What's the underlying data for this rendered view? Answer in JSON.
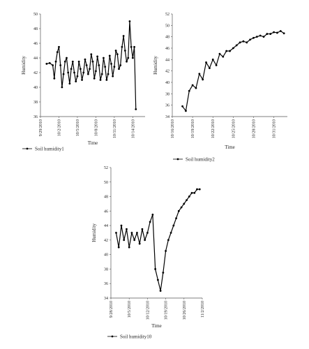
{
  "chart_data": [
    {
      "type": "line",
      "xlabel": "Time",
      "ylabel": "Humidity",
      "ylim": [
        36,
        50
      ],
      "yticks": [
        36,
        38,
        40,
        42,
        44,
        46,
        48,
        50
      ],
      "xlim": [
        "9/29/2010",
        "10/16/2010"
      ],
      "xticks": [
        "9/29/2010",
        "10/2/2010",
        "10/5/2010",
        "10/8/2010",
        "10/11/2010",
        "10/14/2010"
      ],
      "legend_position": "bottom-left",
      "series": [
        {
          "name": "Soil humidity1",
          "color": "#000000",
          "marker": "dot",
          "x": [
            "9/30/2010 00:00",
            "9/30/2010 12:00",
            "10/1/2010 00:00",
            "10/1/2010 06:00",
            "10/1/2010 12:00",
            "10/1/2010 18:00",
            "10/2/2010 00:00",
            "10/2/2010 06:00",
            "10/2/2010 12:00",
            "10/2/2010 18:00",
            "10/3/2010 00:00",
            "10/3/2010 06:00",
            "10/3/2010 12:00",
            "10/3/2010 18:00",
            "10/4/2010 00:00",
            "10/4/2010 06:00",
            "10/4/2010 12:00",
            "10/4/2010 18:00",
            "10/5/2010 00:00",
            "10/5/2010 06:00",
            "10/5/2010 12:00",
            "10/5/2010 18:00",
            "10/6/2010 00:00",
            "10/6/2010 06:00",
            "10/6/2010 12:00",
            "10/6/2010 18:00",
            "10/7/2010 00:00",
            "10/7/2010 06:00",
            "10/7/2010 12:00",
            "10/7/2010 18:00",
            "10/8/2010 00:00",
            "10/8/2010 06:00",
            "10/8/2010 12:00",
            "10/8/2010 18:00",
            "10/9/2010 00:00",
            "10/9/2010 06:00",
            "10/9/2010 12:00",
            "10/9/2010 18:00",
            "10/10/2010 00:00",
            "10/10/2010 06:00",
            "10/10/2010 12:00",
            "10/10/2010 18:00",
            "10/11/2010 00:00",
            "10/11/2010 06:00",
            "10/11/2010 12:00",
            "10/11/2010 18:00",
            "10/12/2010 00:00",
            "10/12/2010 06:00",
            "10/12/2010 12:00",
            "10/12/2010 18:00",
            "10/13/2010 00:00",
            "10/13/2010 06:00",
            "10/13/2010 12:00",
            "10/13/2010 18:00",
            "10/14/2010 00:00",
            "10/14/2010 06:00",
            "10/14/2010 12:00"
          ],
          "y": [
            43.2,
            43.3,
            43.0,
            41.2,
            43.5,
            44.8,
            45.5,
            43.0,
            40.0,
            41.8,
            43.5,
            44.0,
            42.0,
            40.5,
            42.5,
            43.5,
            42.0,
            40.8,
            41.5,
            43.5,
            42.5,
            41.0,
            42.0,
            43.8,
            43.0,
            41.8,
            42.5,
            44.5,
            43.5,
            41.2,
            42.2,
            44.2,
            43.0,
            41.0,
            41.8,
            44.0,
            42.8,
            41.0,
            41.8,
            44.3,
            43.2,
            41.5,
            42.8,
            45.0,
            44.5,
            42.5,
            43.0,
            45.5,
            47.0,
            45.0,
            43.5,
            44.0,
            49.0,
            45.5,
            44.0,
            45.5,
            37.0
          ]
        }
      ]
    },
    {
      "type": "line",
      "xlabel": "Time",
      "ylabel": "Humidity",
      "ylim": [
        34,
        52
      ],
      "yticks": [
        34,
        36,
        38,
        40,
        42,
        44,
        46,
        48,
        50,
        52
      ],
      "xlim": [
        "10/16/2010",
        "11/2/2010"
      ],
      "xticks": [
        "10/16/2010",
        "10/19/2010",
        "10/22/2010",
        "10/25/2010",
        "10/28/2010",
        "10/31/2010"
      ],
      "legend_position": "bottom-right",
      "series": [
        {
          "name": "Soil humidity2",
          "color": "#000000",
          "marker": "dot",
          "x": [
            "10/17/2010 12:00",
            "10/18/2010 00:00",
            "10/18/2010 12:00",
            "10/19/2010 00:00",
            "10/19/2010 12:00",
            "10/20/2010 00:00",
            "10/20/2010 12:00",
            "10/21/2010 00:00",
            "10/21/2010 12:00",
            "10/22/2010 00:00",
            "10/22/2010 12:00",
            "10/23/2010 00:00",
            "10/23/2010 12:00",
            "10/24/2010 00:00",
            "10/24/2010 12:00",
            "10/25/2010 00:00",
            "10/25/2010 12:00",
            "10/26/2010 00:00",
            "10/26/2010 12:00",
            "10/27/2010 00:00",
            "10/27/2010 12:00",
            "10/28/2010 00:00",
            "10/28/2010 12:00",
            "10/29/2010 00:00",
            "10/29/2010 12:00",
            "10/30/2010 00:00",
            "10/30/2010 12:00",
            "10/31/2010 00:00",
            "10/31/2010 12:00",
            "11/1/2010 00:00",
            "11/1/2010 12:00"
          ],
          "y": [
            35.8,
            35.0,
            38.5,
            39.5,
            39.0,
            41.5,
            40.5,
            43.5,
            42.5,
            44.0,
            43.0,
            45.0,
            44.5,
            45.5,
            45.5,
            46.0,
            46.5,
            47.0,
            47.2,
            47.0,
            47.5,
            47.8,
            48.0,
            48.2,
            48.0,
            48.5,
            48.5,
            48.8,
            48.7,
            49.0,
            48.6
          ]
        }
      ]
    },
    {
      "type": "line",
      "xlabel": "Time",
      "ylabel": "Humidity",
      "ylim": [
        34,
        52
      ],
      "yticks": [
        34,
        36,
        38,
        40,
        42,
        44,
        46,
        48,
        50,
        52
      ],
      "xlim": [
        "9/28/2010",
        "11/2/2010"
      ],
      "xticks": [
        "9/28/2010",
        "10/5/2010",
        "10/12/2010",
        "10/19/2010",
        "10/26/2010",
        "11/2/2010"
      ],
      "legend_position": "bottom-left",
      "series": [
        {
          "name": "Soil humidity10",
          "color": "#000000",
          "marker": "dot",
          "x": [
            "9/30/2010",
            "10/1/2010",
            "10/2/2010",
            "10/3/2010",
            "10/4/2010",
            "10/5/2010",
            "10/6/2010",
            "10/7/2010",
            "10/8/2010",
            "10/9/2010",
            "10/10/2010",
            "10/11/2010",
            "10/12/2010",
            "10/13/2010",
            "10/14/2010",
            "10/15/2010",
            "10/16/2010",
            "10/17/2010",
            "10/18/2010",
            "10/19/2010",
            "10/20/2010",
            "10/21/2010",
            "10/22/2010",
            "10/23/2010",
            "10/24/2010",
            "10/25/2010",
            "10/26/2010",
            "10/27/2010",
            "10/28/2010",
            "10/29/2010",
            "10/30/2010",
            "10/31/2010",
            "11/1/2010"
          ],
          "y": [
            43.0,
            41.0,
            44.0,
            42.0,
            43.5,
            41.0,
            43.0,
            42.0,
            43.0,
            41.5,
            43.5,
            42.0,
            43.0,
            44.5,
            45.5,
            38.0,
            36.5,
            35.0,
            37.5,
            40.5,
            42.0,
            43.0,
            44.0,
            45.0,
            46.0,
            46.5,
            47.0,
            47.5,
            48.0,
            48.5,
            48.5,
            49.0,
            49.0
          ]
        }
      ]
    }
  ]
}
